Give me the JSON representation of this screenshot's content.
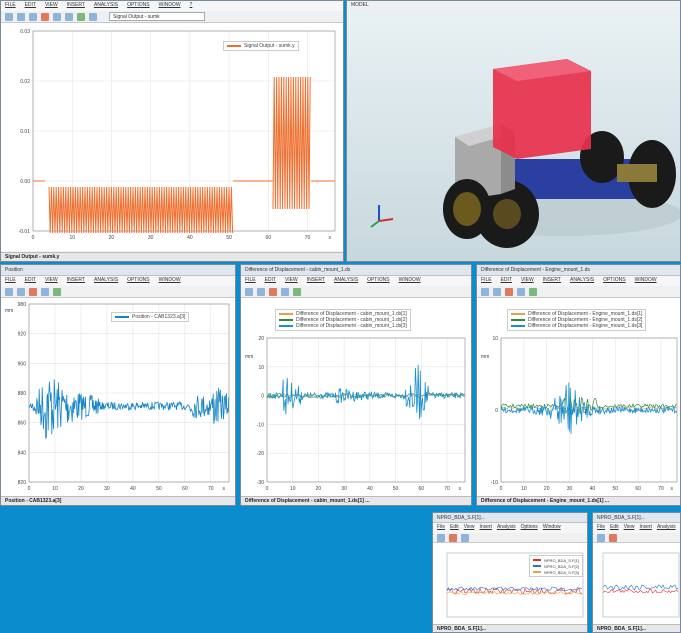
{
  "colors": {
    "desktop": "#0a8ccd",
    "signal": "#f07030",
    "position": "#1585c8",
    "diff_orange": "#e8a04a",
    "diff_green": "#2e8b3a",
    "diff_blue": "#1a90d0",
    "viewport_sky": "#d8e6ea",
    "box_red": "#e83a55",
    "box_gray": "#b9b9b9"
  },
  "signal_window": {
    "menu": [
      "FILE",
      "EDIT",
      "VIEW",
      "INSERT",
      "ANALYSIS",
      "OPTIONS",
      "WINDOW",
      "?"
    ],
    "dropdown_value": "Signal Output - sumk",
    "legend": "Signal Output - sumk.y",
    "status": "Signal Output - sumk.y",
    "y_ticks": [
      "0.03",
      "0.02",
      "0.01",
      "0.00",
      "-0.01"
    ],
    "x_ticks": [
      "0",
      "10",
      "20",
      "30",
      "40",
      "50",
      "60",
      "70"
    ],
    "x_unit": "s"
  },
  "model_window": {
    "title": "MODEL"
  },
  "position_window": {
    "title": "Position",
    "menu": [
      "FILE",
      "EDIT",
      "VIEW",
      "INSERT",
      "ANALYSIS",
      "OPTIONS",
      "WINDOW",
      "?"
    ],
    "legend": "Position - CAB1323.a[3]",
    "y_unit": "mm",
    "y_ticks": [
      "980",
      "920",
      "900",
      "880",
      "860",
      "840",
      "820"
    ],
    "x_ticks": [
      "0",
      "10",
      "20",
      "30",
      "40",
      "50",
      "60",
      "70"
    ],
    "x_unit": "s",
    "status": "Position - CAB1323.a[3]"
  },
  "cabin_window": {
    "title": "Difference of Displacement - cabin_mount_1.ds",
    "menu": [
      "FILE",
      "EDIT",
      "VIEW",
      "INSERT",
      "ANALYSIS",
      "OPTIONS",
      "WINDOW",
      "?"
    ],
    "legend": [
      "Difference of Displacement - cabin_mount_1.ds[1]",
      "Difference of Displacement - cabin_mount_1.ds[2]",
      "Difference of Displacement - cabin_mount_1.ds[3]"
    ],
    "y_unit": "mm",
    "y_ticks": [
      "20",
      "10",
      "0",
      "-10",
      "-20",
      "-30"
    ],
    "x_ticks": [
      "0",
      "10",
      "20",
      "30",
      "40",
      "50",
      "60",
      "70"
    ],
    "x_unit": "s",
    "status": "Difference of Displacement - cabin_mount_1.ds[1] ..."
  },
  "engine_window": {
    "title": "Difference of Displacement - Engine_mount_1.ds",
    "menu": [
      "FILE",
      "EDIT",
      "VIEW",
      "INSERT",
      "ANALYSIS",
      "OPTIONS",
      "WINDOW",
      "?"
    ],
    "legend": [
      "Difference of Displacement - Engine_mount_1.ds[1]",
      "Difference of Displacement - Engine_mount_1.ds[2]",
      "Difference of Displacement - Engine_mount_1.ds[3]"
    ],
    "y_unit": "mm",
    "y_ticks": [
      "10",
      "0",
      "-10"
    ],
    "x_ticks": [
      "0",
      "10",
      "20",
      "30",
      "40",
      "50",
      "60",
      "70"
    ],
    "x_unit": "s",
    "status": "Difference of Displacement - Engine_mount_1.ds[1] ..."
  },
  "small_window_1": {
    "title": "NPRO_BDA_S.F[1]...",
    "menu": [
      "File",
      "Edit",
      "View",
      "Insert",
      "Analysis",
      "Options",
      "Window"
    ],
    "legend": [
      "NPRO_BDA_S.F[1]",
      "NPRO_BDA_S.F[2]",
      "NPRO_BDA_S.F[3]"
    ],
    "status": "NPRO_BDA_S.F[1]..."
  },
  "small_window_2": {
    "title": "NPRO_BDA_S.F[1]...",
    "menu": [
      "File",
      "Edit",
      "View",
      "Insert",
      "Analysis"
    ],
    "status": "NPRO_BDA_S.F[1]..."
  }
}
